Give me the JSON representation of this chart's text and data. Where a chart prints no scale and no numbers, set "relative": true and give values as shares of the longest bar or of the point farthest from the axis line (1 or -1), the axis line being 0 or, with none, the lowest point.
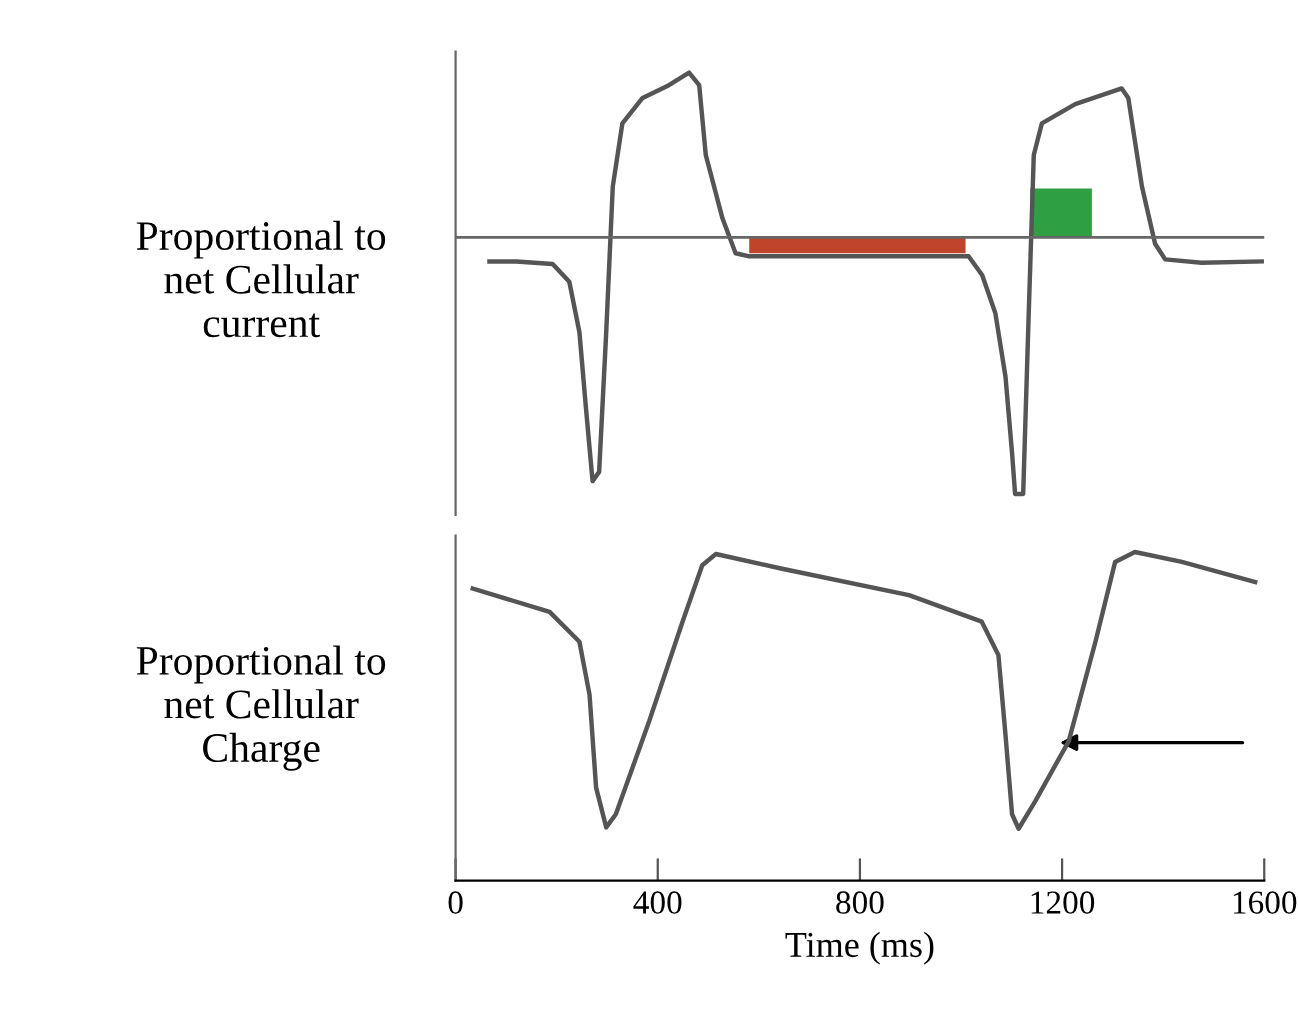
{
  "chart_data": [
    {
      "type": "line",
      "ylabel": "Proportional to\nnet Cellular\ncurrent",
      "relative": true,
      "xlim": [
        0,
        1600
      ],
      "tick_labels": false,
      "grid": false,
      "legend": false,
      "line_style": "solid",
      "series": [
        {
          "color": "#555555",
          "x": [
            67,
            120,
            192,
            225,
            245,
            258,
            271,
            284,
            298,
            311,
            330,
            370,
            422,
            462,
            482,
            495,
            528,
            554,
            581,
            1015,
            1042,
            1068,
            1088,
            1101,
            1107,
            1123,
            1134,
            1144,
            1160,
            1226,
            1318,
            1331,
            1358,
            1384,
            1404,
            1476,
            1595
          ],
          "values": [
            -0.094,
            -0.094,
            -0.104,
            -0.173,
            -0.37,
            -0.667,
            -0.95,
            -0.914,
            -0.37,
            0.198,
            0.444,
            0.543,
            0.593,
            0.642,
            0.593,
            0.321,
            0.074,
            -0.062,
            -0.074,
            -0.074,
            -0.148,
            -0.296,
            -0.543,
            -0.84,
            -1,
            -1,
            -0.296,
            0.321,
            0.444,
            0.519,
            0.58,
            0.543,
            0.198,
            -0.025,
            -0.086,
            -0.099,
            -0.094
          ]
        },
        {
          "type": "area",
          "color": "#c0442c",
          "x": [
            581,
            1009
          ],
          "values": [
            -0.062,
            -0.062
          ]
        },
        {
          "type": "area",
          "color": "#2ea043",
          "x": [
            1137,
            1259
          ],
          "values": [
            0.19,
            0.19
          ]
        }
      ]
    },
    {
      "type": "line",
      "ylabel": "Proportional to\nnet Cellular\nCharge",
      "xlabel": "Time (ms)",
      "relative": true,
      "xlim": [
        0,
        1600
      ],
      "xticks": [
        0,
        400,
        800,
        1200,
        1600
      ],
      "tick_labels": "x",
      "grid": false,
      "legend": false,
      "line_style": "solid",
      "series": [
        {
          "color": "#555555",
          "x": [
            34,
            186,
            245,
            265,
            278,
            298,
            317,
            383,
            449,
            488,
            515,
            646,
            897,
            1041,
            1074,
            1088,
            1101,
            1114,
            1147,
            1213,
            1266,
            1305,
            1344,
            1437,
            1582
          ],
          "values": [
            0.889,
            0.818,
            0.727,
            0.566,
            0.283,
            0.162,
            0.202,
            0.485,
            0.788,
            0.96,
            0.994,
            0.949,
            0.869,
            0.788,
            0.687,
            0.444,
            0.202,
            0.158,
            0.242,
            0.424,
            0.727,
            0.97,
            1,
            0.97,
            0.909
          ]
        }
      ]
    }
  ]
}
